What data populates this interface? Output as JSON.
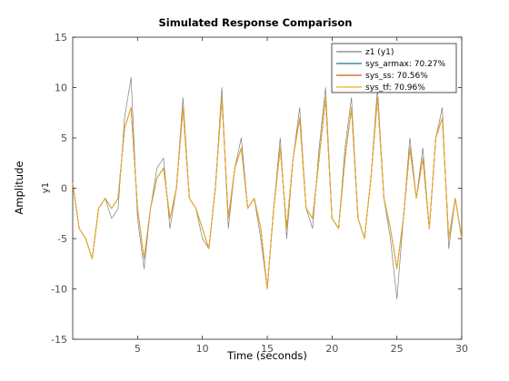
{
  "chart_data": {
    "type": "line",
    "title": "Simulated Response Comparison",
    "xlabel": "Time (seconds)",
    "ylabel": "Amplitude",
    "channel_label": "y1",
    "xlim": [
      0,
      30
    ],
    "ylim": [
      -15,
      15
    ],
    "xticks": [
      5,
      10,
      15,
      20,
      25,
      30
    ],
    "yticks": [
      -15,
      -10,
      -5,
      0,
      5,
      10,
      15
    ],
    "grid": false,
    "legend_position": "top-right",
    "x": [
      0,
      0.5,
      1,
      1.5,
      2,
      2.5,
      3,
      3.5,
      4,
      4.5,
      5,
      5.5,
      6,
      6.5,
      7,
      7.5,
      8,
      8.5,
      9,
      9.5,
      10,
      10.5,
      11,
      11.5,
      12,
      12.5,
      13,
      13.5,
      14,
      14.5,
      15,
      15.5,
      16,
      16.5,
      17,
      17.5,
      18,
      18.5,
      19,
      19.5,
      20,
      20.5,
      21,
      21.5,
      22,
      22.5,
      23,
      23.5,
      24,
      24.5,
      25,
      25.5,
      26,
      26.5,
      27,
      27.5,
      28,
      28.5,
      29,
      29.5,
      30
    ],
    "series": [
      {
        "name": "z1 (y1)",
        "color": "#7f7f7f",
        "values": [
          0.5,
          -4,
          -5,
          -7,
          -2,
          -1,
          -3,
          -2,
          7,
          11,
          -3,
          -8,
          -2,
          2,
          3,
          -4,
          0,
          9,
          -1,
          -2,
          -5,
          -6,
          0,
          10,
          -4,
          2,
          5,
          -2,
          -1,
          -5,
          -10,
          -2,
          5,
          -5,
          3,
          8,
          -2,
          -4,
          4,
          10,
          -3,
          -4,
          4,
          9,
          -3,
          -5,
          1,
          10,
          -1,
          -5,
          -11,
          -3,
          5,
          -1,
          4,
          -4,
          5,
          8,
          -6,
          -1,
          -5
        ]
      },
      {
        "name": "sys_armax: 70.27%",
        "color": "#1f6f8b",
        "values": [
          0.5,
          -4,
          -5,
          -7,
          -2,
          -1,
          -2,
          -1,
          6,
          8,
          -2,
          -7,
          -2,
          1,
          2,
          -3,
          0,
          8,
          -1,
          -2,
          -4,
          -6,
          0,
          9,
          -3,
          2,
          4,
          -2,
          -1,
          -4,
          -10,
          -2,
          4,
          -4,
          3,
          7,
          -2,
          -3,
          3,
          9,
          -3,
          -4,
          3,
          8,
          -3,
          -5,
          1,
          9,
          -1,
          -4,
          -8,
          -3,
          4,
          -1,
          3,
          -4,
          5,
          7,
          -5,
          -1,
          -5
        ]
      },
      {
        "name": "sys_ss: 70.56%",
        "color": "#d9531e",
        "values": [
          0.5,
          -4,
          -5,
          -7,
          -2,
          -1,
          -2,
          -1,
          6,
          8,
          -2,
          -7,
          -2,
          1,
          2,
          -3,
          0,
          8,
          -1,
          -2,
          -4,
          -6,
          0,
          9,
          -3,
          2,
          4,
          -2,
          -1,
          -4,
          -10,
          -2,
          4,
          -4,
          3,
          7,
          -2,
          -3,
          3,
          9,
          -3,
          -4,
          3,
          8,
          -3,
          -5,
          1,
          9,
          -1,
          -4,
          -8,
          -3,
          4,
          -1,
          3,
          -4,
          5,
          7,
          -5,
          -1,
          -5
        ]
      },
      {
        "name": "sys_tf: 70.96%",
        "color": "#edb120",
        "values": [
          0.5,
          -4,
          -5,
          -7,
          -2,
          -1,
          -2,
          -1,
          6,
          8,
          -2,
          -7,
          -2,
          1,
          2,
          -3,
          0,
          8,
          -1,
          -2,
          -4,
          -6,
          0,
          9,
          -3,
          2,
          4,
          -2,
          -1,
          -4,
          -10,
          -2,
          4,
          -4,
          3,
          7,
          -2,
          -3,
          3,
          9,
          -3,
          -4,
          3,
          8,
          -3,
          -5,
          1,
          9,
          -1,
          -4,
          -8,
          -3,
          4,
          -1,
          3,
          -4,
          5,
          7,
          -5,
          -1,
          -5
        ]
      }
    ]
  }
}
